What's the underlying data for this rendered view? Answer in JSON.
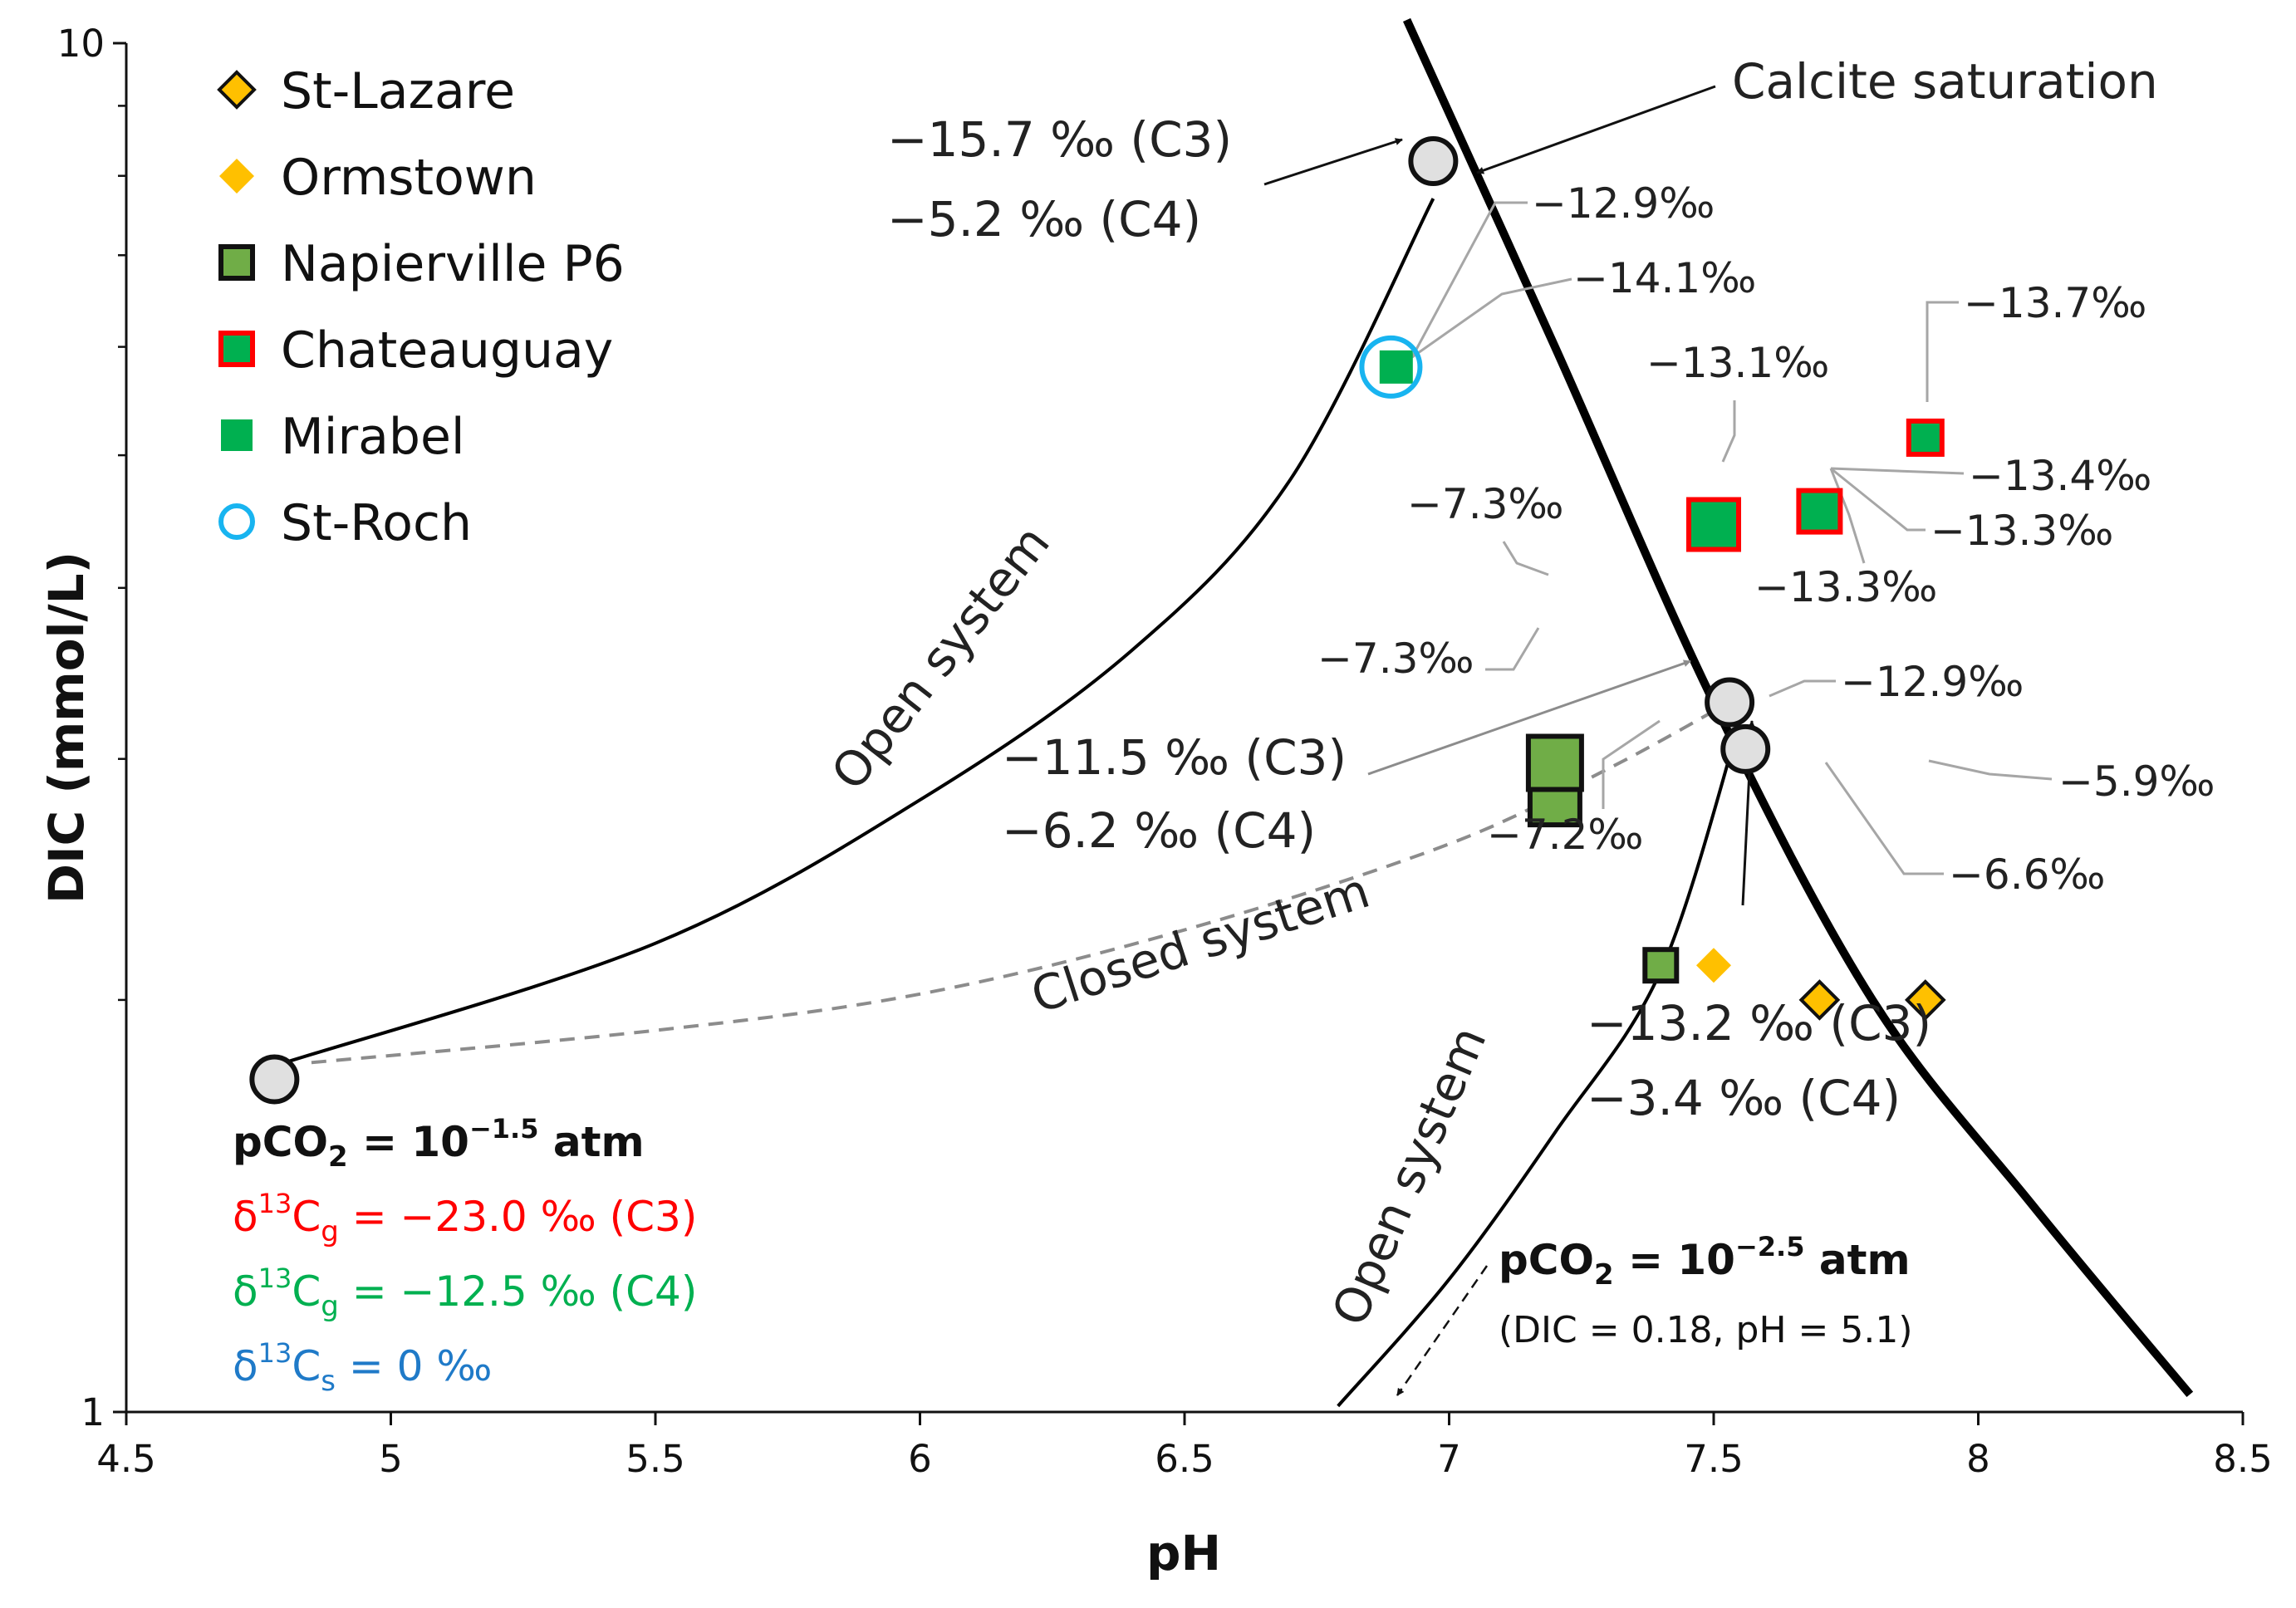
{
  "chart_data": {
    "type": "scatter",
    "title": "",
    "xlabel": "pH",
    "ylabel": "DIC (mmol/L)",
    "xlim": [
      4.5,
      8.5
    ],
    "ylim": [
      1,
      10
    ],
    "yscale": "log",
    "grid": false,
    "legend_position": "top-left",
    "x_ticks": [
      4.5,
      5,
      5.5,
      6,
      6.5,
      7,
      7.5,
      8,
      8.5
    ],
    "x_tick_labels": [
      "4.5",
      "5",
      "5.5",
      "6",
      "6.5",
      "7",
      "7.5",
      "8",
      "8.5"
    ],
    "y_ticks": [
      1,
      10
    ],
    "y_tick_labels": [
      "1",
      "10"
    ],
    "y_minor_ticks": [
      2,
      3,
      4,
      5,
      6,
      7,
      8,
      9
    ],
    "colors": {
      "c3": "#ff0000",
      "c4": "#00b050",
      "blue": "#1f7ac8",
      "gray_label": "#999999",
      "leader": "#a6a6a6",
      "orange": "#ffc000",
      "olive": "#70ad47",
      "mirabel": "#00b050",
      "chateauguay_edge": "#ff0000",
      "stroch": "#18b4f0",
      "node_fill": "#e0e0e0"
    },
    "legend": [
      {
        "name": "St-Lazare",
        "marker": "diamond",
        "fill": "#ffc000",
        "edge": "#111111"
      },
      {
        "name": "Ormstown",
        "marker": "diamond",
        "fill": "#ffc000",
        "edge": "none"
      },
      {
        "name": "Napierville P6",
        "marker": "square",
        "fill": "#70ad47",
        "edge": "#111111"
      },
      {
        "name": "Chateauguay",
        "marker": "square",
        "fill": "#00b050",
        "edge": "#ff0000"
      },
      {
        "name": "Mirabel",
        "marker": "square",
        "fill": "#00b050",
        "edge": "none"
      },
      {
        "name": "St-Roch",
        "marker": "circle",
        "fill": "none",
        "edge": "#18b4f0"
      }
    ],
    "series": [
      {
        "name": "St-Lazare",
        "points": [
          {
            "x": 7.7,
            "y": 2.0
          },
          {
            "x": 7.9,
            "y": 2.0
          }
        ]
      },
      {
        "name": "Ormstown",
        "points": [
          {
            "x": 7.5,
            "y": 2.12
          }
        ]
      },
      {
        "name": "Napierville P6",
        "points": [
          {
            "x": 7.2,
            "y": 2.8
          },
          {
            "x": 7.2,
            "y": 2.98
          },
          {
            "x": 7.4,
            "y": 2.12
          }
        ]
      },
      {
        "name": "Chateauguay",
        "points": [
          {
            "x": 7.5,
            "y": 4.45
          },
          {
            "x": 7.7,
            "y": 4.55
          },
          {
            "x": 7.9,
            "y": 5.15
          }
        ]
      },
      {
        "name": "Mirabel",
        "points": [
          {
            "x": 6.9,
            "y": 5.8
          }
        ]
      },
      {
        "name": "St-Roch",
        "points": [
          {
            "x": 6.89,
            "y": 5.8
          }
        ]
      }
    ],
    "curves": [
      {
        "name": "Calcite saturation",
        "style": "thick",
        "points": [
          [
            6.92,
            10.4
          ],
          [
            7.2,
            6.0
          ],
          [
            7.5,
            3.3
          ],
          [
            7.8,
            2.0
          ],
          [
            8.1,
            1.42
          ],
          [
            8.4,
            1.03
          ]
        ]
      },
      {
        "name": "Open system (pCO2 = 10^-1.5)",
        "style": "solid",
        "points": [
          [
            4.8,
            1.8
          ],
          [
            5.5,
            2.2
          ],
          [
            6.0,
            2.8
          ],
          [
            6.4,
            3.6
          ],
          [
            6.7,
            4.8
          ],
          [
            6.97,
            7.7
          ]
        ]
      },
      {
        "name": "Closed system",
        "style": "dashed",
        "points": [
          [
            4.85,
            1.8
          ],
          [
            5.5,
            1.9
          ],
          [
            6.0,
            2.02
          ],
          [
            6.5,
            2.25
          ],
          [
            7.0,
            2.6
          ],
          [
            7.3,
            2.95
          ],
          [
            7.53,
            3.3
          ]
        ]
      },
      {
        "name": "Open system (pCO2 = 10^-2.5)",
        "style": "solid",
        "points": [
          [
            6.79,
            1.01
          ],
          [
            7.0,
            1.25
          ],
          [
            7.2,
            1.6
          ],
          [
            7.4,
            2.1
          ],
          [
            7.55,
            3.2
          ]
        ]
      }
    ],
    "nodes": [
      {
        "x": 6.97,
        "y": 8.2
      },
      {
        "x": 4.78,
        "y": 1.75
      },
      {
        "x": 7.53,
        "y": 3.3
      },
      {
        "x": 7.56,
        "y": 3.05
      }
    ],
    "text_items": {
      "calcite_saturation": "Calcite saturation",
      "node_top_c3": "−15.7 ‰ (C3)",
      "node_top_c4": "−5.2 ‰ (C4)",
      "node_mid_c3": "−11.5 ‰ (C3)",
      "node_mid_c4": "−6.2 ‰ (C4)",
      "node_low_c3": "−13.2 ‰ (C3)",
      "node_low_c4": "−3.4 ‰ (C4)",
      "open_system_1": "Open system",
      "open_system_2": "Open system",
      "closed_system": "Closed system",
      "pco2_low_prefix": "pCO",
      "pco2_low_sub": "2",
      "pco2_low_mid": " = 10",
      "pco2_low_sup": "−1.5",
      "pco2_low_unit": " atm",
      "dg_c3_pre": "δ",
      "dg_c3_sup": "13",
      "dg_c3_c": "C",
      "dg_c3_sub": "g",
      "dg_c3_val": " = −23.0 ‰ (C3)",
      "dg_c4_pre": "δ",
      "dg_c4_sup": "13",
      "dg_c4_c": "C",
      "dg_c4_sub": "g",
      "dg_c4_val": " = −12.5 ‰ (C4)",
      "ds_pre": "δ",
      "ds_sup": "13",
      "ds_c": "C",
      "ds_sub": "s",
      "ds_val": " = 0 ‰",
      "pco2_high_prefix": "pCO",
      "pco2_high_sub": "2",
      "pco2_high_mid": " = 10",
      "pco2_high_sup": "−2.5",
      "pco2_high_unit": " atm",
      "pco2_high_note": "(DIC = 0.18, pH = 5.1)"
    },
    "point_labels": [
      {
        "id": "l129a",
        "text": "−12.9‰"
      },
      {
        "id": "l141",
        "text": "−14.1‰"
      },
      {
        "id": "l131",
        "text": "−13.1‰"
      },
      {
        "id": "l137",
        "text": "−13.7‰"
      },
      {
        "id": "l134",
        "text": "−13.4‰"
      },
      {
        "id": "l133a",
        "text": "−13.3‰"
      },
      {
        "id": "l133b",
        "text": "−13.3‰"
      },
      {
        "id": "l73a",
        "text": "−7.3‰"
      },
      {
        "id": "l73b",
        "text": "−7.3‰"
      },
      {
        "id": "l129b",
        "text": "−12.9‰"
      },
      {
        "id": "l72",
        "text": "−7.2‰"
      },
      {
        "id": "l59",
        "text": "−5.9‰"
      },
      {
        "id": "l66",
        "text": "−6.6‰"
      }
    ]
  }
}
